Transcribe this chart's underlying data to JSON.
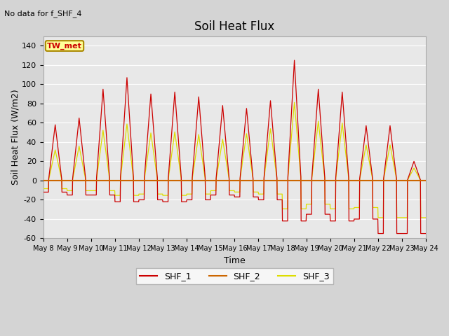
{
  "title": "Soil Heat Flux",
  "subtitle": "No data for f_SHF_4",
  "xlabel": "Time",
  "ylabel": "Soil Heat Flux (W/m2)",
  "ylim": [
    -60,
    150
  ],
  "yticks": [
    -60,
    -40,
    -20,
    0,
    20,
    40,
    60,
    80,
    100,
    120,
    140
  ],
  "fig_bg_color": "#d4d4d4",
  "plot_bg_color": "#e8e8e8",
  "shf1_color": "#cc0000",
  "shf2_color": "#cc6600",
  "shf3_color": "#dddd00",
  "tw_met_box_color": "#ffff99",
  "tw_met_border_color": "#aa8800",
  "n_days": 16,
  "pts_per_day": 96,
  "shf1_amps": [
    58,
    65,
    95,
    107,
    90,
    92,
    87,
    78,
    75,
    83,
    125,
    95,
    92,
    57,
    57,
    20
  ],
  "shf1_neg": [
    12,
    15,
    15,
    22,
    20,
    22,
    20,
    15,
    17,
    20,
    42,
    35,
    42,
    40,
    55,
    55
  ],
  "shf3_scale_early": 0.55,
  "shf3_scale_late": 0.65,
  "shf3_neg_scale": 0.7
}
